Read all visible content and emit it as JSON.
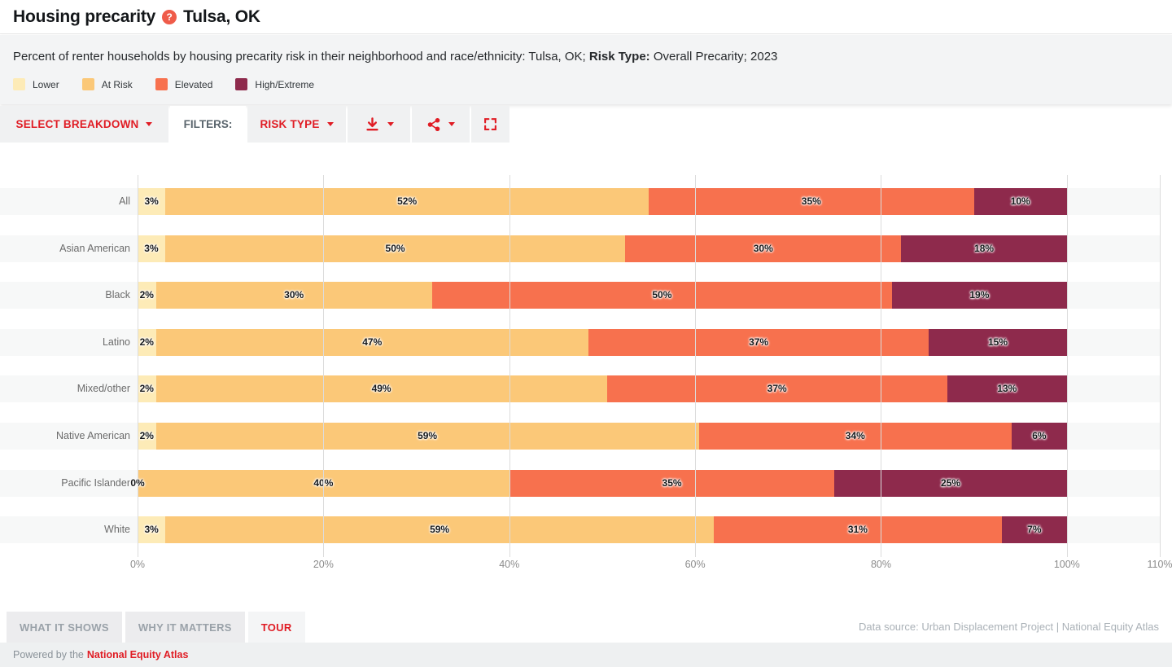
{
  "header": {
    "title": "Housing precarity",
    "location": "Tulsa, OK",
    "help_icon": "?"
  },
  "subtitle": {
    "prefix": "Percent of renter households by housing precarity risk in their neighborhood and race/ethnicity: Tulsa, OK; ",
    "risk_type_label": "Risk Type:",
    "suffix": " Overall Precarity; 2023"
  },
  "legend": {
    "items": [
      {
        "label": "Lower",
        "color": "#FDEBB7"
      },
      {
        "label": "At Risk",
        "color": "#FBC878"
      },
      {
        "label": "Elevated",
        "color": "#F7714E"
      },
      {
        "label": "High/Extreme",
        "color": "#8E2A4C"
      }
    ]
  },
  "toolbar": {
    "select_breakdown_label": "SELECT BREAKDOWN",
    "filters_label": "FILTERS:",
    "risk_type_label": "RISK TYPE"
  },
  "colors": {
    "accent_red": "#E01C24",
    "help_badge": "#EF5B49",
    "row_stripe": "#f7f8f8",
    "gridline": "#dcdcdc"
  },
  "chart_data": {
    "type": "bar",
    "orientation": "horizontal",
    "stacked": true,
    "categories": [
      "All",
      "Asian American",
      "Black",
      "Latino",
      "Mixed/other",
      "Native American",
      "Pacific Islander",
      "White"
    ],
    "series": [
      {
        "name": "Lower",
        "color": "#FDEBB7",
        "values": [
          3,
          3,
          2,
          2,
          2,
          2,
          0,
          3
        ]
      },
      {
        "name": "At Risk",
        "color": "#FBC878",
        "values": [
          52,
          50,
          30,
          47,
          49,
          59,
          40,
          59
        ]
      },
      {
        "name": "Elevated",
        "color": "#F7714E",
        "values": [
          35,
          30,
          50,
          37,
          37,
          34,
          35,
          31
        ]
      },
      {
        "name": "High/Extreme",
        "color": "#8E2A4C",
        "values": [
          10,
          18,
          19,
          15,
          13,
          6,
          25,
          7
        ]
      }
    ],
    "x_ticks": [
      "0%",
      "20%",
      "40%",
      "60%",
      "80%",
      "100%",
      "110%"
    ],
    "xlim": [
      0,
      110
    ],
    "value_suffix": "%",
    "grid": true,
    "legend_position": "top"
  },
  "footer": {
    "tabs": [
      {
        "label": "WHAT IT SHOWS",
        "active": false
      },
      {
        "label": "WHY IT MATTERS",
        "active": false
      },
      {
        "label": "TOUR",
        "active": true
      }
    ],
    "data_source": "Data source: Urban Displacement Project | National Equity Atlas",
    "powered_by_prefix": "Powered by the",
    "powered_by_link": "National Equity Atlas"
  }
}
